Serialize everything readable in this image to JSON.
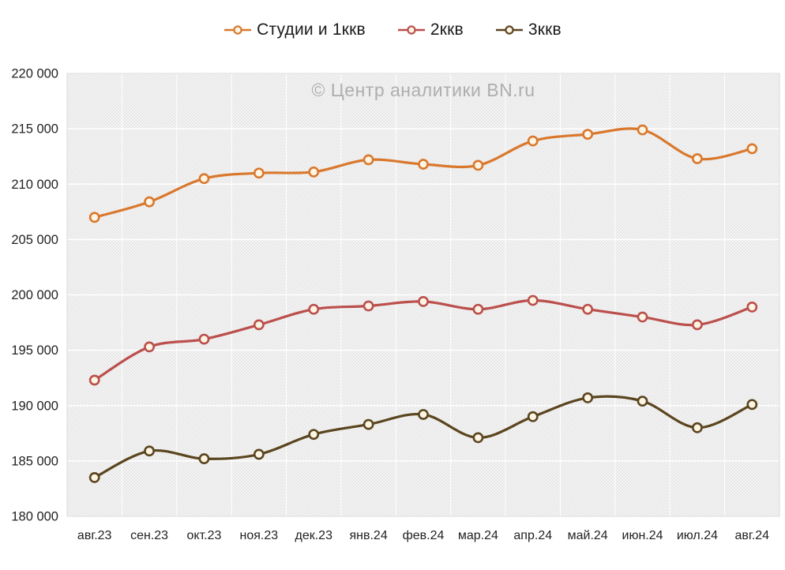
{
  "watermark": {
    "text": "© Центр аналитики BN.ru"
  },
  "legend": {
    "items": [
      {
        "label": "Студии и 1ккв",
        "color": "#D9782D"
      },
      {
        "label": "2ккв",
        "color": "#BB4F4C"
      },
      {
        "label": "3ккв",
        "color": "#5A451E"
      }
    ]
  },
  "chart_data": {
    "type": "line",
    "categories": [
      "авг.23",
      "сен.23",
      "окт.23",
      "ноя.23",
      "дек.23",
      "янв.24",
      "фев.24",
      "мар.24",
      "апр.24",
      "май.24",
      "июн.24",
      "июл.24",
      "авг.24"
    ],
    "series": [
      {
        "name": "Студии и 1ккв",
        "color": "#D9782D",
        "values": [
          207000,
          208400,
          210500,
          211000,
          211100,
          212200,
          211800,
          211700,
          213900,
          214500,
          214900,
          212300,
          213200
        ]
      },
      {
        "name": "2ккв",
        "color": "#BB4F4C",
        "values": [
          192300,
          195300,
          196000,
          197300,
          198700,
          199000,
          199400,
          198700,
          199500,
          198700,
          198000,
          197300,
          198900
        ]
      },
      {
        "name": "3ккв",
        "color": "#5A451E",
        "values": [
          183500,
          185900,
          185200,
          185600,
          187400,
          188300,
          189200,
          187100,
          189000,
          190700,
          190400,
          188000,
          190100
        ]
      }
    ],
    "title": "",
    "xlabel": "",
    "ylabel": "",
    "ylim": [
      180000,
      220000
    ],
    "ytick_step": 5000,
    "grid": true,
    "legend_position": "top",
    "colors": {
      "plot_background": "#f5f5f5",
      "hatch_line": "#e4e4e4",
      "gridline": "#ffffff",
      "plot_border": "#d9d9d9",
      "tick_label": "#222222",
      "marker_fill": "#fcf5e4"
    }
  }
}
